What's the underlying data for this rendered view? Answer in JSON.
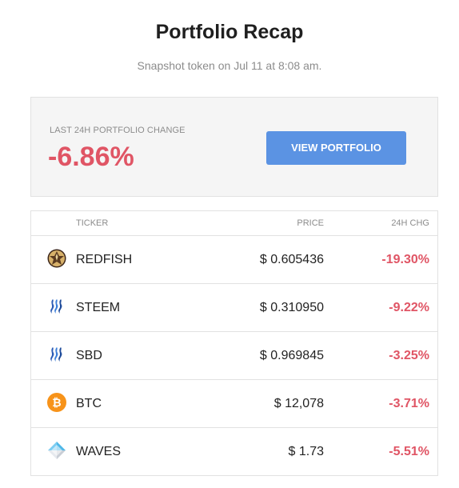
{
  "header": {
    "title": "Portfolio Recap",
    "subtitle": "Snapshot token on Jul 11 at 8:08 am."
  },
  "summary": {
    "label": "LAST 24H PORTFOLIO CHANGE",
    "value": "-6.86%",
    "button_label": "VIEW PORTFOLIO"
  },
  "table": {
    "columns": {
      "ticker": "TICKER",
      "price": "PRICE",
      "change": "24H CHG"
    },
    "rows": [
      {
        "icon": "redfish-icon",
        "ticker": "REDFISH",
        "price": "$ 0.605436",
        "change": "-19.30%"
      },
      {
        "icon": "steem-icon",
        "ticker": "STEEM",
        "price": "$ 0.310950",
        "change": "-9.22%"
      },
      {
        "icon": "sbd-icon",
        "ticker": "SBD",
        "price": "$ 0.969845",
        "change": "-3.25%"
      },
      {
        "icon": "btc-icon",
        "ticker": "BTC",
        "price": "$ 12,078",
        "change": "-3.71%"
      },
      {
        "icon": "waves-icon",
        "ticker": "WAVES",
        "price": "$ 1.73",
        "change": "-5.51%"
      }
    ]
  },
  "colors": {
    "negative": "#e05565",
    "button": "#5b93e3"
  }
}
